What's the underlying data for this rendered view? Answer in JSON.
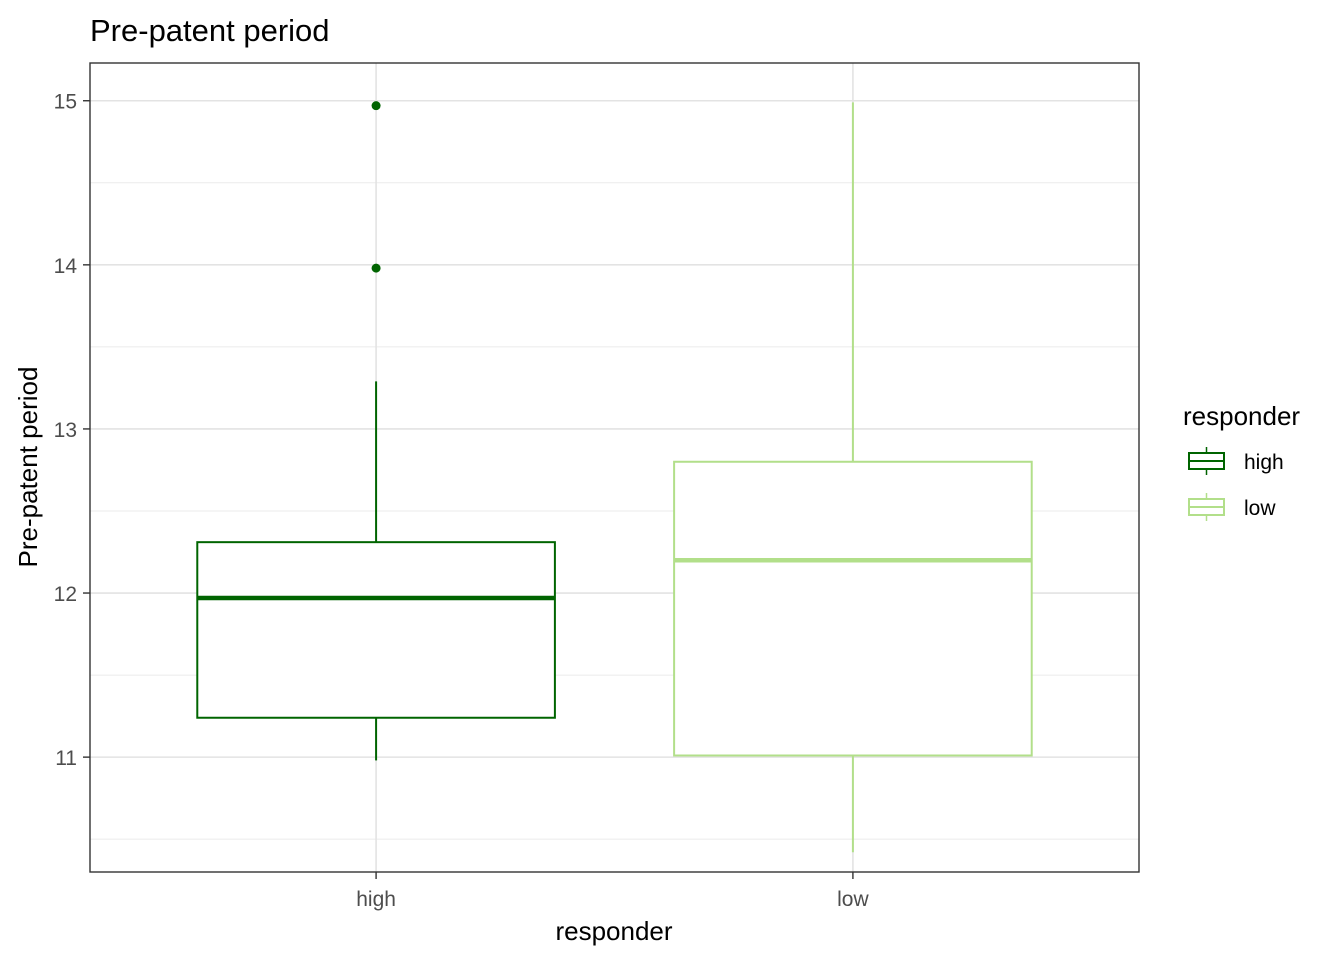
{
  "chart_data": {
    "type": "boxplot",
    "title": "Pre-patent period",
    "xlabel": "responder",
    "ylabel": "Pre-patent period",
    "categories": [
      "high",
      "low"
    ],
    "y_ticks": [
      "11",
      "12",
      "13",
      "14",
      "15"
    ],
    "ylim": [
      10.3,
      15.23
    ],
    "grid": true,
    "legend": {
      "title": "responder",
      "position": "right",
      "entries": [
        "high",
        "low"
      ]
    },
    "series": [
      {
        "name": "high",
        "color": "#006400",
        "whisker_low": 10.98,
        "q1": 11.24,
        "median": 11.97,
        "q3": 12.31,
        "whisker_high": 13.29,
        "outliers": [
          13.98,
          14.97
        ]
      },
      {
        "name": "low",
        "color": "#b2df8a",
        "whisker_low": 10.42,
        "q1": 11.01,
        "median": 12.2,
        "q3": 12.8,
        "whisker_high": 14.99,
        "outliers": []
      }
    ]
  }
}
